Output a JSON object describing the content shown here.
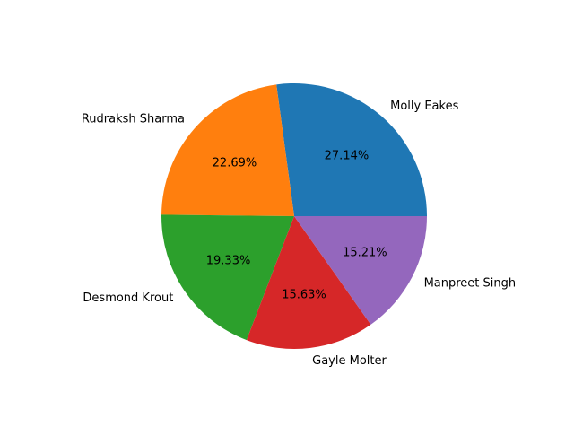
{
  "chart_data": {
    "type": "pie",
    "title": "",
    "start_angle_deg": 0,
    "direction": "counterclockwise",
    "slices": [
      {
        "label": "Molly Eakes",
        "value": 27.14,
        "pct_label": "27.14%",
        "color": "#1f77b4"
      },
      {
        "label": "Rudraksh Sharma",
        "value": 22.69,
        "pct_label": "22.69%",
        "color": "#ff7f0e"
      },
      {
        "label": "Desmond Krout",
        "value": 19.33,
        "pct_label": "19.33%",
        "color": "#2ca02c"
      },
      {
        "label": "Gayle Molter",
        "value": 15.63,
        "pct_label": "15.63%",
        "color": "#d62728"
      },
      {
        "label": "Manpreet Singh",
        "value": 15.21,
        "pct_label": "15.21%",
        "color": "#9467bd"
      }
    ]
  }
}
